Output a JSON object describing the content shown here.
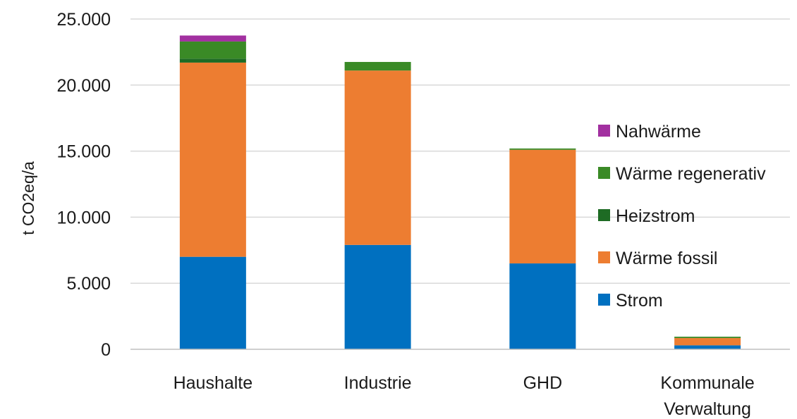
{
  "chart_data": {
    "type": "bar",
    "stacked": true,
    "title": "",
    "xlabel": "",
    "ylabel": "t CO2eq/a",
    "ylim": [
      0,
      25000
    ],
    "yticks": [
      0,
      5000,
      10000,
      15000,
      20000,
      25000
    ],
    "ytick_labels": [
      "0",
      "5.000",
      "10.000",
      "15.000",
      "20.000",
      "25.000"
    ],
    "grid": true,
    "legend_position": "right",
    "categories": [
      [
        "Haushalte"
      ],
      [
        "Industrie"
      ],
      [
        "GHD"
      ],
      [
        "Kommunale",
        "Verwaltung"
      ]
    ],
    "series": [
      {
        "name": "Strom",
        "color": "#0070c0",
        "values": [
          7000,
          7900,
          6500,
          300
        ]
      },
      {
        "name": "Wärme fossil",
        "color": "#ed7d31",
        "values": [
          14700,
          13200,
          8600,
          550
        ]
      },
      {
        "name": "Heizstrom",
        "color": "#1e6b24",
        "values": [
          300,
          0,
          0,
          0
        ]
      },
      {
        "name": "Wärme regenerativ",
        "color": "#3a8a26",
        "values": [
          1300,
          650,
          100,
          100
        ]
      },
      {
        "name": "Nahwärme",
        "color": "#a230a0",
        "values": [
          450,
          0,
          0,
          0
        ]
      }
    ]
  }
}
